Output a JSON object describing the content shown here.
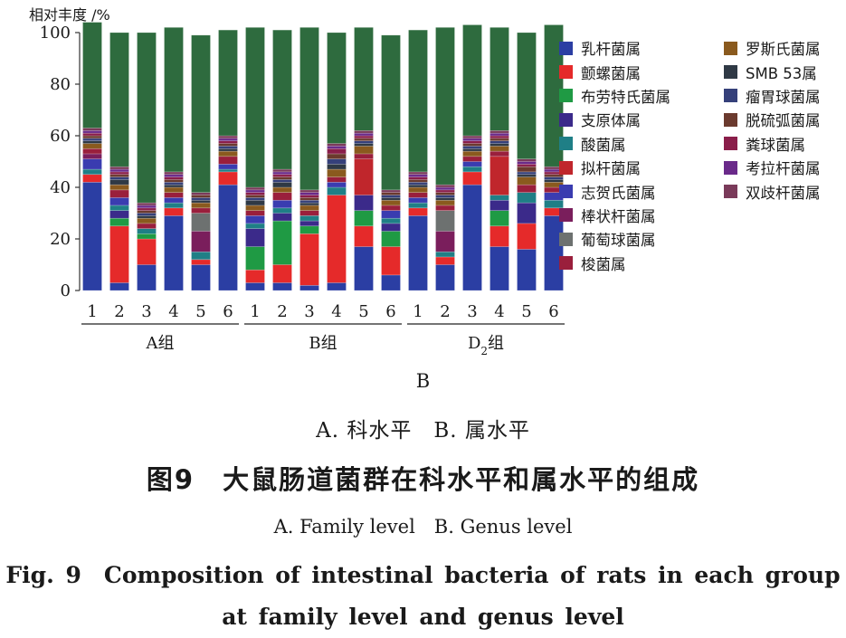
{
  "chart_data": {
    "type": "bar",
    "stacked": true,
    "ylabel": "相对丰度 /%",
    "ylim": [
      0,
      100
    ],
    "yticks": [
      0,
      20,
      40,
      60,
      80,
      100
    ],
    "categories": [
      "1",
      "2",
      "3",
      "4",
      "5",
      "6",
      "1",
      "2",
      "3",
      "4",
      "5",
      "6",
      "1",
      "2",
      "3",
      "4",
      "5",
      "6"
    ],
    "groups": [
      {
        "label": "A组",
        "size": 6
      },
      {
        "label": "B组",
        "size": 6
      },
      {
        "label": "D2组",
        "size": 6
      }
    ],
    "legend_position": "right",
    "series": [
      {
        "name": "乳杆菌属",
        "color": "#2b3ea3",
        "values": [
          42,
          3,
          10,
          29,
          10,
          41,
          3,
          3,
          2,
          3,
          17,
          6,
          29,
          10,
          41,
          17,
          16,
          29
        ]
      },
      {
        "name": "颤螺菌属",
        "color": "#e52a2a",
        "values": [
          3,
          22,
          10,
          3,
          2,
          5,
          5,
          7,
          20,
          34,
          8,
          11,
          3,
          3,
          5,
          8,
          10,
          3
        ]
      },
      {
        "name": "布劳特氏菌属",
        "color": "#1f9a44",
        "values": [
          0,
          3,
          2,
          0,
          0,
          0,
          9,
          17,
          3,
          0,
          6,
          6,
          0,
          0,
          0,
          6,
          0,
          0
        ]
      },
      {
        "name": "支原体属",
        "color": "#3b2a8a",
        "values": [
          0,
          3,
          0,
          0,
          0,
          0,
          7,
          3,
          2,
          0,
          6,
          3,
          0,
          0,
          0,
          4,
          8,
          0
        ]
      },
      {
        "name": "酸菌属",
        "color": "#1f7f86",
        "values": [
          2,
          2,
          2,
          2,
          3,
          1,
          2,
          2,
          2,
          3,
          0,
          2,
          2,
          2,
          2,
          2,
          4,
          3
        ]
      },
      {
        "name": "拟杆菌属",
        "color": "#c0262c",
        "values": [
          0,
          0,
          0,
          0,
          0,
          0,
          0,
          0,
          0,
          0,
          14,
          0,
          0,
          0,
          0,
          15,
          0,
          0
        ]
      },
      {
        "name": "志贺氏菌属",
        "color": "#3a3cb0",
        "values": [
          4,
          3,
          0,
          2,
          0,
          2,
          3,
          3,
          0,
          2,
          0,
          3,
          2,
          0,
          2,
          0,
          0,
          3
        ]
      },
      {
        "name": "棒状杆菌属",
        "color": "#7a1e5c",
        "values": [
          2,
          0,
          0,
          0,
          8,
          0,
          0,
          0,
          0,
          0,
          0,
          0,
          0,
          8,
          0,
          0,
          0,
          0
        ]
      },
      {
        "name": "葡萄球菌属",
        "color": "#6d7170",
        "values": [
          0,
          0,
          0,
          0,
          7,
          0,
          0,
          0,
          0,
          0,
          0,
          0,
          0,
          8,
          0,
          0,
          0,
          0
        ]
      },
      {
        "name": "梭菌属",
        "color": "#9a1f3c",
        "values": [
          2,
          3,
          2,
          2,
          2,
          3,
          2,
          3,
          2,
          2,
          2,
          2,
          2,
          2,
          2,
          2,
          3,
          2
        ]
      },
      {
        "name": "罗斯氏菌属",
        "color": "#8a5a1e",
        "values": [
          2,
          2,
          2,
          2,
          2,
          2,
          2,
          2,
          2,
          3,
          3,
          2,
          2,
          2,
          2,
          2,
          3,
          2
        ]
      },
      {
        "name": "SMB 53属",
        "color": "#2f3945",
        "values": [
          1,
          2,
          1,
          1,
          1,
          1,
          2,
          2,
          1,
          2,
          1,
          1,
          1,
          1,
          1,
          1,
          1,
          1
        ]
      },
      {
        "name": "瘤胃球菌属",
        "color": "#35407a",
        "values": [
          1,
          1,
          1,
          1,
          1,
          1,
          1,
          1,
          1,
          2,
          1,
          1,
          1,
          1,
          1,
          1,
          1,
          1
        ]
      },
      {
        "name": "脱硫弧菌属",
        "color": "#6b3a2e",
        "values": [
          1,
          1,
          1,
          1,
          1,
          1,
          1,
          1,
          1,
          2,
          1,
          1,
          1,
          1,
          1,
          1,
          2,
          1
        ]
      },
      {
        "name": "粪球菌属",
        "color": "#8a1e4a",
        "values": [
          1,
          1,
          1,
          1,
          0,
          1,
          1,
          1,
          1,
          2,
          1,
          0,
          1,
          1,
          1,
          1,
          1,
          1
        ]
      },
      {
        "name": "考拉杆菌属",
        "color": "#6a2a8a",
        "values": [
          1,
          1,
          1,
          1,
          0,
          1,
          1,
          1,
          1,
          1,
          1,
          0,
          1,
          1,
          1,
          1,
          1,
          1
        ]
      },
      {
        "name": "双歧杆菌属",
        "color": "#7a3a5a",
        "values": [
          1,
          1,
          1,
          1,
          1,
          1,
          1,
          1,
          1,
          1,
          1,
          1,
          1,
          1,
          1,
          1,
          1,
          1
        ]
      },
      {
        "name": "",
        "color": "#2e6b3e",
        "values": [
          41,
          52,
          66,
          56,
          61,
          41,
          62,
          54,
          63,
          43,
          40,
          60,
          55,
          61,
          43,
          40,
          49,
          55
        ]
      }
    ]
  },
  "panel_label": "B",
  "caption": {
    "subtitle_cn": "A. 科水平　B. 属水平",
    "title_cn": "图9　大鼠肠道菌群在科水平和属水平的组成",
    "subtitle_en": "A. Family level　B. Genus level",
    "title_en": "Fig. 9　Composition of intestinal bacteria of rats in each group at family level and genus level"
  }
}
